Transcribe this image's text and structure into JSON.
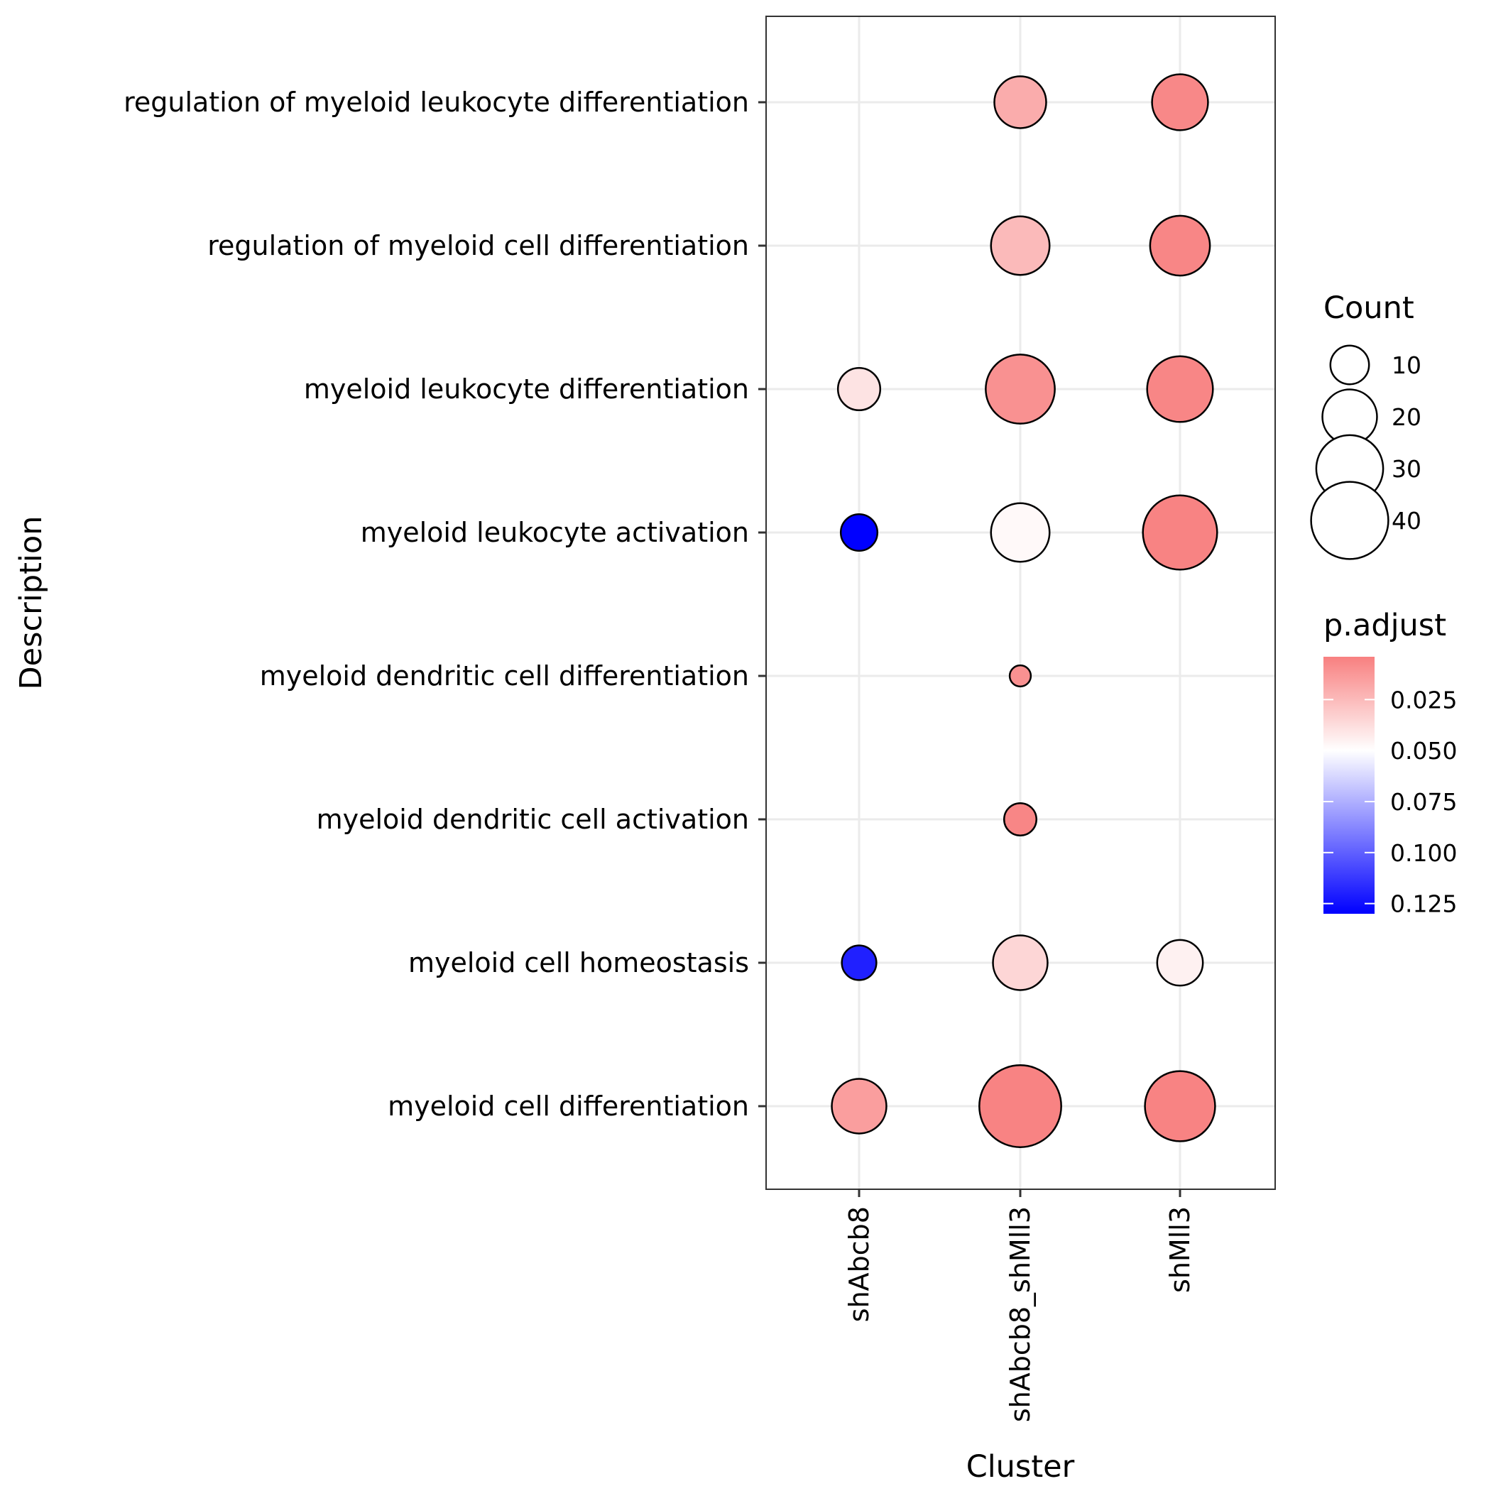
{
  "chart_data": {
    "type": "scatter",
    "subtype": "dot-plot",
    "xlabel": "Cluster",
    "ylabel": "Description",
    "x_categories": [
      "shAbcb8",
      "shAbcb8_shMll3",
      "shMll3"
    ],
    "y_categories": [
      "myeloid cell differentiation",
      "myeloid cell homeostasis",
      "myeloid dendritic cell activation",
      "myeloid dendritic cell differentiation",
      "myeloid leukocyte activation",
      "myeloid leukocyte differentiation",
      "regulation of myeloid cell differentiation",
      "regulation of myeloid leukocyte differentiation"
    ],
    "points": [
      {
        "x": "shAbcb8_shMll3",
        "y": "regulation of myeloid leukocyte differentiation",
        "count": 18,
        "p_adjust": 0.02
      },
      {
        "x": "shMll3",
        "y": "regulation of myeloid leukocyte differentiation",
        "count": 21,
        "p_adjust": 0.007
      },
      {
        "x": "shAbcb8_shMll3",
        "y": "regulation of myeloid cell differentiation",
        "count": 23,
        "p_adjust": 0.025
      },
      {
        "x": "shMll3",
        "y": "regulation of myeloid cell differentiation",
        "count": 24,
        "p_adjust": 0.006
      },
      {
        "x": "shAbcb8",
        "y": "myeloid leukocyte differentiation",
        "count": 12,
        "p_adjust": 0.04
      },
      {
        "x": "shAbcb8_shMll3",
        "y": "myeloid leukocyte differentiation",
        "count": 32,
        "p_adjust": 0.01
      },
      {
        "x": "shMll3",
        "y": "myeloid leukocyte differentiation",
        "count": 29,
        "p_adjust": 0.006
      },
      {
        "x": "shAbcb8",
        "y": "myeloid leukocyte activation",
        "count": 9,
        "p_adjust": 0.13
      },
      {
        "x": "shAbcb8_shMll3",
        "y": "myeloid leukocyte activation",
        "count": 23,
        "p_adjust": 0.048
      },
      {
        "x": "shMll3",
        "y": "myeloid leukocyte activation",
        "count": 37,
        "p_adjust": 0.005
      },
      {
        "x": "shAbcb8_shMll3",
        "y": "myeloid dendritic cell differentiation",
        "count": 3,
        "p_adjust": 0.01
      },
      {
        "x": "shAbcb8_shMll3",
        "y": "myeloid dendritic cell activation",
        "count": 7,
        "p_adjust": 0.006
      },
      {
        "x": "shAbcb8",
        "y": "myeloid cell homeostasis",
        "count": 8,
        "p_adjust": 0.12
      },
      {
        "x": "shAbcb8_shMll3",
        "y": "myeloid cell homeostasis",
        "count": 20,
        "p_adjust": 0.035
      },
      {
        "x": "shMll3",
        "y": "myeloid cell homeostasis",
        "count": 14,
        "p_adjust": 0.045
      },
      {
        "x": "shAbcb8",
        "y": "myeloid cell differentiation",
        "count": 20,
        "p_adjust": 0.015
      },
      {
        "x": "shAbcb8_shMll3",
        "y": "myeloid cell differentiation",
        "count": 45,
        "p_adjust": 0.005
      },
      {
        "x": "shMll3",
        "y": "myeloid cell differentiation",
        "count": 33,
        "p_adjust": 0.005
      }
    ],
    "legend_count": {
      "title": "Count",
      "values": [
        10,
        20,
        30,
        40
      ],
      "labels": [
        "10",
        "20",
        "30",
        "40"
      ]
    },
    "legend_color": {
      "title": "p.adjust",
      "ticks": [
        0.025,
        0.05,
        0.075,
        0.1,
        0.125
      ],
      "tick_labels": [
        "0.025",
        "0.050",
        "0.075",
        "0.100",
        "0.125"
      ],
      "range": [
        0.004,
        0.13
      ],
      "low_color": "#f88080",
      "mid_color": "#ffffff",
      "high_color": "#0000ff",
      "midpoint": 0.05
    },
    "grid": true,
    "legend_position": "right",
    "point_stroke_color": "#000000",
    "grid_color": "#ebebeb"
  }
}
